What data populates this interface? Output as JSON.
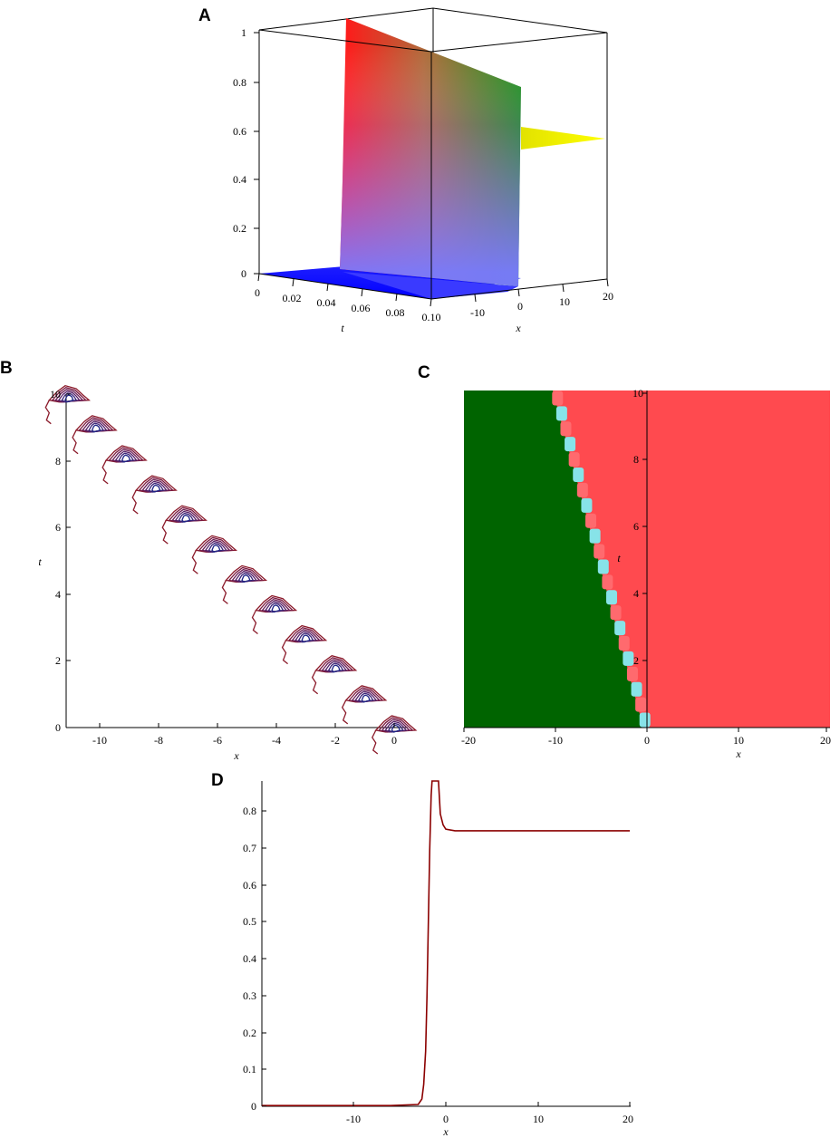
{
  "panels": {
    "A": {
      "letter": "A",
      "xlabel": "x",
      "tlabel": "t",
      "x_ticks": [
        "-10",
        "0",
        "10",
        "20"
      ],
      "t_ticks": [
        "0",
        "0.02",
        "0.04",
        "0.06",
        "0.08",
        "0.10"
      ],
      "z_ticks": [
        "0",
        "0.2",
        "0.4",
        "0.6",
        "0.8",
        "1"
      ]
    },
    "B": {
      "letter": "B",
      "xlabel": "x",
      "ylabel": "t",
      "x_ticks": [
        "-10",
        "-8",
        "-6",
        "-4",
        "-2",
        "0"
      ],
      "y_ticks": [
        "0",
        "2",
        "4",
        "6",
        "8",
        "10"
      ]
    },
    "C": {
      "letter": "C",
      "xlabel": "x",
      "ylabel": "t",
      "x_ticks": [
        "-20",
        "-10",
        "0",
        "10",
        "20"
      ],
      "y_ticks": [
        "2",
        "4",
        "6",
        "8",
        "10"
      ]
    },
    "D": {
      "letter": "D",
      "xlabel": "x",
      "x_ticks": [
        "-10",
        "0",
        "10",
        "20"
      ],
      "y_ticks": [
        "0",
        "0.1",
        "0.2",
        "0.3",
        "0.4",
        "0.5",
        "0.6",
        "0.7",
        "0.8"
      ]
    }
  },
  "chart_data": [
    {
      "type": "area",
      "panel": "A",
      "kind": "3d-surface",
      "x_range": [
        -20,
        20
      ],
      "t_range": [
        0,
        0.1
      ],
      "z_range": [
        0,
        1
      ],
      "x_ticks": [
        -10,
        0,
        10,
        20
      ],
      "t_ticks": [
        0,
        0.02,
        0.04,
        0.06,
        0.08,
        0.1
      ],
      "z_ticks": [
        0,
        0.2,
        0.4,
        0.6,
        0.8,
        1
      ],
      "left_plateau": 0,
      "right_plateau": 0.56,
      "peak": 1.05
    },
    {
      "type": "line",
      "panel": "B",
      "kind": "contour",
      "x_range": [
        -11,
        0.4
      ],
      "t_range": [
        0,
        10
      ],
      "x_ticks": [
        -10,
        -8,
        -6,
        -4,
        -2,
        0
      ],
      "t_ticks": [
        0,
        2,
        4,
        6,
        8,
        10
      ],
      "peak_centers": [
        [
          0,
          0
        ],
        [
          -1,
          0.9
        ],
        [
          -2,
          1.8
        ],
        [
          -3,
          2.7
        ],
        [
          -4,
          3.6
        ],
        [
          -5,
          4.5
        ],
        [
          -6,
          5.4
        ],
        [
          -7,
          6.3
        ],
        [
          -8,
          7.2
        ],
        [
          -9,
          8.1
        ],
        [
          -10,
          9.0
        ],
        [
          -10.9,
          9.9
        ]
      ]
    },
    {
      "type": "heatmap",
      "panel": "C",
      "x_range": [
        -20,
        20
      ],
      "t_range": [
        0,
        10
      ],
      "x_ticks": [
        -20,
        -10,
        0,
        10,
        20
      ],
      "t_ticks": [
        2,
        4,
        6,
        8,
        10
      ],
      "front_line": [
        [
          0,
          0
        ],
        [
          -10,
          10
        ]
      ],
      "left_color": "#006400",
      "right_color": "#ff4a4f",
      "front_color": "#87e3e8"
    },
    {
      "type": "line",
      "panel": "D",
      "x_range": [
        -20,
        20
      ],
      "ylim": [
        0,
        0.89
      ],
      "x_ticks": [
        -10,
        0,
        10,
        20
      ],
      "y_ticks": [
        0,
        0.1,
        0.2,
        0.3,
        0.4,
        0.5,
        0.6,
        0.7,
        0.8
      ],
      "color": "#8b0000",
      "points": [
        [
          -20,
          0.002
        ],
        [
          -6,
          0.002
        ],
        [
          -3,
          0.005
        ],
        [
          -2.6,
          0.02
        ],
        [
          -2.4,
          0.06
        ],
        [
          -2.2,
          0.15
        ],
        [
          -2.05,
          0.3
        ],
        [
          -1.9,
          0.5
        ],
        [
          -1.75,
          0.7
        ],
        [
          -1.6,
          0.85
        ],
        [
          -1.5,
          0.89
        ],
        [
          -0.8,
          0.89
        ],
        [
          -0.6,
          0.8
        ],
        [
          -0.3,
          0.77
        ],
        [
          0,
          0.758
        ],
        [
          1,
          0.754
        ],
        [
          20,
          0.754
        ]
      ]
    }
  ]
}
